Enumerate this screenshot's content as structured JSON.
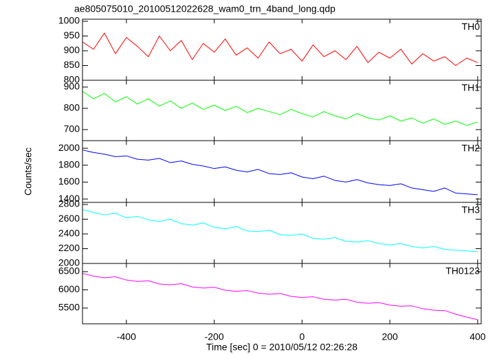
{
  "chart_data": [
    {
      "type": "line",
      "title": "ae805075010_20100512022628_wam0_trn_4band_long.qdp",
      "x": [
        -500,
        -475,
        -450,
        -425,
        -400,
        -375,
        -350,
        -325,
        -300,
        -275,
        -250,
        -225,
        -200,
        -175,
        -150,
        -125,
        -100,
        -75,
        -50,
        -25,
        0,
        25,
        50,
        75,
        100,
        125,
        150,
        175,
        200,
        225,
        250,
        275,
        300,
        325,
        350,
        375,
        400
      ],
      "series": [
        {
          "name": "TH0",
          "color": "#ff0000",
          "values": [
            930,
            905,
            960,
            890,
            945,
            915,
            880,
            950,
            900,
            935,
            870,
            925,
            895,
            940,
            885,
            910,
            875,
            930,
            890,
            905,
            865,
            920,
            880,
            900,
            870,
            915,
            860,
            895,
            875,
            905,
            855,
            890,
            865,
            880,
            850,
            875,
            860
          ]
        }
      ],
      "xlim": [
        -500,
        408
      ],
      "ylim": [
        800,
        1007
      ],
      "yticks": [
        800,
        850,
        900,
        950,
        1000
      ]
    },
    {
      "type": "line",
      "x": [
        -500,
        -475,
        -450,
        -425,
        -400,
        -375,
        -350,
        -325,
        -300,
        -275,
        -250,
        -225,
        -200,
        -175,
        -150,
        -125,
        -100,
        -75,
        -50,
        -25,
        0,
        25,
        50,
        75,
        100,
        125,
        150,
        175,
        200,
        225,
        250,
        275,
        300,
        325,
        350,
        375,
        400
      ],
      "series": [
        {
          "name": "TH1",
          "color": "#00ff00",
          "values": [
            880,
            845,
            870,
            830,
            855,
            820,
            845,
            810,
            835,
            800,
            825,
            795,
            815,
            790,
            810,
            780,
            800,
            785,
            770,
            795,
            775,
            760,
            785,
            765,
            750,
            775,
            755,
            745,
            765,
            740,
            755,
            730,
            750,
            725,
            740,
            720,
            735
          ]
        }
      ],
      "xlim": [
        -500,
        408
      ],
      "ylim": [
        648,
        932
      ],
      "yticks": [
        700,
        800,
        900
      ]
    },
    {
      "type": "line",
      "y_label": "Counts/sec",
      "x": [
        -500,
        -475,
        -450,
        -425,
        -400,
        -375,
        -350,
        -325,
        -300,
        -275,
        -250,
        -225,
        -200,
        -175,
        -150,
        -125,
        -100,
        -75,
        -50,
        -25,
        0,
        25,
        50,
        75,
        100,
        125,
        150,
        175,
        200,
        225,
        250,
        275,
        300,
        325,
        350,
        375,
        400
      ],
      "series": [
        {
          "name": "TH2",
          "color": "#0000ff",
          "values": [
            1980,
            1950,
            1930,
            1900,
            1910,
            1870,
            1860,
            1880,
            1830,
            1850,
            1810,
            1790,
            1760,
            1780,
            1740,
            1720,
            1750,
            1700,
            1690,
            1710,
            1660,
            1640,
            1670,
            1620,
            1600,
            1630,
            1590,
            1570,
            1560,
            1580,
            1530,
            1510,
            1490,
            1530,
            1470,
            1460,
            1450
          ]
        }
      ],
      "xlim": [
        -500,
        408
      ],
      "ylim": [
        1360,
        2090
      ],
      "yticks": [
        1400,
        1600,
        1800,
        2000
      ]
    },
    {
      "type": "line",
      "x": [
        -500,
        -475,
        -450,
        -425,
        -400,
        -375,
        -350,
        -325,
        -300,
        -275,
        -250,
        -225,
        -200,
        -175,
        -150,
        -125,
        -100,
        -75,
        -50,
        -25,
        0,
        25,
        50,
        75,
        100,
        125,
        150,
        175,
        200,
        225,
        250,
        275,
        300,
        325,
        350,
        375,
        400
      ],
      "series": [
        {
          "name": "TH3",
          "color": "#00ffff",
          "values": [
            2730,
            2690,
            2660,
            2680,
            2620,
            2640,
            2590,
            2570,
            2600,
            2540,
            2520,
            2550,
            2490,
            2470,
            2500,
            2440,
            2430,
            2450,
            2390,
            2380,
            2400,
            2340,
            2330,
            2350,
            2300,
            2290,
            2310,
            2270,
            2250,
            2270,
            2230,
            2210,
            2230,
            2190,
            2180,
            2170,
            2160
          ]
        }
      ],
      "xlim": [
        -500,
        408
      ],
      "ylim": [
        2000,
        2828
      ],
      "yticks": [
        2000,
        2200,
        2400,
        2600,
        2800
      ]
    },
    {
      "type": "line",
      "x_label": "Time [sec] 0 = 2010/05/12 02:26:28",
      "x": [
        -500,
        -475,
        -450,
        -425,
        -400,
        -375,
        -350,
        -325,
        -300,
        -275,
        -250,
        -225,
        -200,
        -175,
        -150,
        -125,
        -100,
        -75,
        -50,
        -25,
        0,
        25,
        50,
        75,
        100,
        125,
        150,
        175,
        200,
        225,
        250,
        275,
        300,
        325,
        350,
        375,
        400
      ],
      "series": [
        {
          "name": "TH0123",
          "color": "#ff00ff",
          "values": [
            6450,
            6380,
            6330,
            6360,
            6270,
            6230,
            6250,
            6160,
            6140,
            6170,
            6080,
            6050,
            6070,
            5990,
            5960,
            5980,
            5910,
            5880,
            5900,
            5820,
            5790,
            5810,
            5740,
            5720,
            5740,
            5660,
            5630,
            5650,
            5580,
            5550,
            5560,
            5480,
            5440,
            5430,
            5330,
            5250,
            5180
          ]
        }
      ],
      "xlim": [
        -500,
        408
      ],
      "ylim": [
        5066,
        6726
      ],
      "yticks": [
        5500,
        6000,
        6500
      ],
      "xticks": [
        -400,
        -200,
        0,
        200,
        400
      ]
    }
  ]
}
